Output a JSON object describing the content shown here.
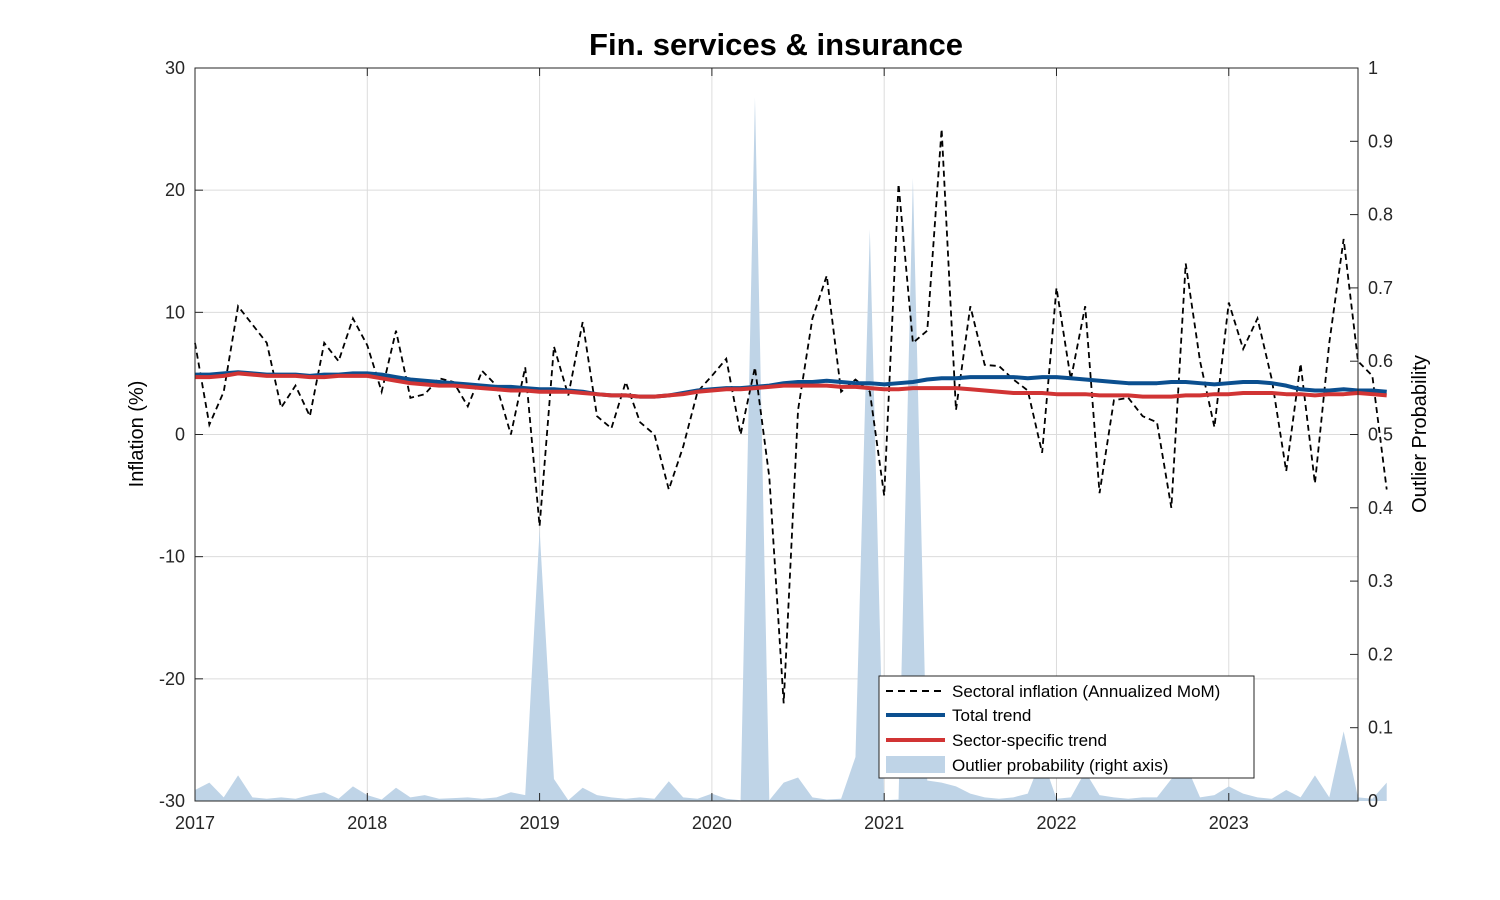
{
  "chart_data": {
    "type": "line",
    "title": "Fin. services & insurance",
    "xlabel": "",
    "ylabel": "Inflation (%)",
    "ylabel_right": "Outlier Probability",
    "xlim": [
      2017.0,
      2023.75
    ],
    "ylim": [
      -30,
      30
    ],
    "ylim_right": [
      0,
      1
    ],
    "x_ticks": [
      "2017",
      "2018",
      "2019",
      "2020",
      "2021",
      "2022",
      "2023"
    ],
    "y_ticks": [
      "30",
      "20",
      "10",
      "0",
      "-10",
      "-20",
      "-30"
    ],
    "y_ticks_right": [
      "1",
      "0.9",
      "0.8",
      "0.7",
      "0.6",
      "0.5",
      "0.4",
      "0.3",
      "0.2",
      "0.1",
      "0"
    ],
    "grid": true,
    "legend_position": "bottom-right",
    "colors": {
      "sectoral": "#000000",
      "total": "#0b4f8f",
      "sector": "#d13434",
      "outlier": "#bfd4e7"
    },
    "start_year": 2017,
    "series": [
      {
        "name": "Sectoral inflation (Annualized MoM)",
        "values": [
          7.5,
          0.8,
          3.5,
          10.5,
          9.0,
          7.5,
          2.2,
          4.0,
          1.5,
          7.5,
          6.0,
          9.5,
          7.3,
          3.5,
          8.5,
          3.0,
          3.3,
          4.6,
          4.3,
          2.3,
          5.2,
          4.0,
          0.0,
          5.5,
          -7.5,
          7.2,
          3.2,
          9.2,
          1.5,
          0.5,
          4.3,
          1.0,
          0.0,
          -4.5,
          -1.0,
          3.5,
          4.8,
          6.2,
          0.0,
          5.5,
          -3.5,
          -22.0,
          2.0,
          9.5,
          13.0,
          3.5,
          4.5,
          3.5,
          -5.0,
          20.5,
          7.5,
          8.5,
          25.0,
          2.0,
          10.5,
          5.7,
          5.6,
          4.5,
          3.6,
          -1.5,
          12.0,
          4.5,
          10.5,
          -4.8,
          2.8,
          3.0,
          1.5,
          1.0,
          -6.0,
          14.0,
          6.0,
          0.6,
          10.8,
          7.0,
          9.5,
          4.5,
          -3.0,
          5.8,
          -4.0,
          7.5,
          16.0,
          6.0,
          4.8,
          -4.5
        ]
      },
      {
        "name": "Total trend",
        "values": [
          4.9,
          4.9,
          5.0,
          5.1,
          5.0,
          4.9,
          4.9,
          4.9,
          4.8,
          4.9,
          4.9,
          5.0,
          5.0,
          4.9,
          4.7,
          4.5,
          4.4,
          4.3,
          4.2,
          4.1,
          4.0,
          3.9,
          3.9,
          3.8,
          3.7,
          3.7,
          3.6,
          3.5,
          3.3,
          3.2,
          3.2,
          3.1,
          3.1,
          3.2,
          3.4,
          3.6,
          3.7,
          3.8,
          3.8,
          3.9,
          4.0,
          4.2,
          4.3,
          4.3,
          4.4,
          4.3,
          4.2,
          4.2,
          4.1,
          4.2,
          4.3,
          4.5,
          4.6,
          4.6,
          4.7,
          4.7,
          4.7,
          4.7,
          4.6,
          4.7,
          4.7,
          4.6,
          4.5,
          4.4,
          4.3,
          4.2,
          4.2,
          4.2,
          4.3,
          4.3,
          4.2,
          4.1,
          4.2,
          4.3,
          4.3,
          4.2,
          4.0,
          3.7,
          3.6,
          3.6,
          3.7,
          3.6,
          3.6,
          3.5
        ]
      },
      {
        "name": "Sector-specific trend",
        "values": [
          4.7,
          4.7,
          4.8,
          5.0,
          4.9,
          4.8,
          4.8,
          4.8,
          4.7,
          4.7,
          4.8,
          4.8,
          4.8,
          4.6,
          4.4,
          4.2,
          4.1,
          4.0,
          4.0,
          3.9,
          3.8,
          3.7,
          3.6,
          3.6,
          3.5,
          3.5,
          3.5,
          3.4,
          3.3,
          3.2,
          3.2,
          3.1,
          3.1,
          3.2,
          3.3,
          3.5,
          3.6,
          3.7,
          3.7,
          3.8,
          3.9,
          4.0,
          4.0,
          4.0,
          4.0,
          3.9,
          3.9,
          3.8,
          3.7,
          3.7,
          3.8,
          3.8,
          3.8,
          3.8,
          3.7,
          3.6,
          3.5,
          3.4,
          3.4,
          3.4,
          3.3,
          3.3,
          3.3,
          3.2,
          3.2,
          3.2,
          3.1,
          3.1,
          3.1,
          3.2,
          3.2,
          3.3,
          3.3,
          3.4,
          3.4,
          3.4,
          3.3,
          3.3,
          3.2,
          3.3,
          3.3,
          3.4,
          3.3,
          3.2
        ]
      },
      {
        "name": "Outlier probability (right axis)",
        "axis": "right",
        "type": "area",
        "values": [
          0.015,
          0.025,
          0.005,
          0.035,
          0.005,
          0.003,
          0.005,
          0.003,
          0.008,
          0.012,
          0.003,
          0.02,
          0.008,
          0.002,
          0.018,
          0.005,
          0.008,
          0.003,
          0.004,
          0.005,
          0.003,
          0.005,
          0.012,
          0.008,
          0.37,
          0.03,
          0.001,
          0.018,
          0.008,
          0.005,
          0.003,
          0.005,
          0.003,
          0.027,
          0.005,
          0.003,
          0.01,
          0.003,
          0.001,
          0.96,
          0.001,
          0.025,
          0.032,
          0.005,
          0.002,
          0.003,
          0.06,
          0.78,
          0.001,
          0.002,
          0.85,
          0.028,
          0.025,
          0.02,
          0.01,
          0.005,
          0.003,
          0.005,
          0.01,
          0.06,
          0.003,
          0.005,
          0.04,
          0.008,
          0.005,
          0.003,
          0.005,
          0.005,
          0.03,
          0.05,
          0.005,
          0.008,
          0.02,
          0.01,
          0.005,
          0.003,
          0.015,
          0.005,
          0.035,
          0.005,
          0.095,
          0.005,
          0.003,
          0.025
        ]
      }
    ]
  }
}
